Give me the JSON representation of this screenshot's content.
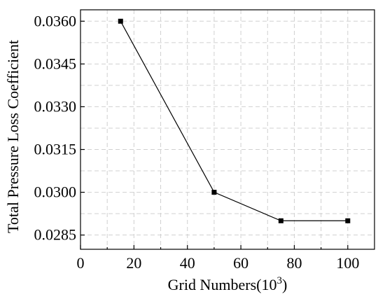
{
  "chart_data": {
    "type": "line",
    "xlabel": "Grid Numbers(10",
    "xlabel_superscript": "3",
    "xlabel_suffix": ")",
    "ylabel": "Total Pressure Loss Coefficient",
    "xlim": [
      0,
      110
    ],
    "ylim": [
      0.028,
      0.0364
    ],
    "xticks": [
      0,
      20,
      40,
      60,
      80,
      100
    ],
    "xtick_labels": [
      "0",
      "20",
      "40",
      "60",
      "80",
      "100"
    ],
    "yticks": [
      0.0285,
      0.03,
      0.0315,
      0.033,
      0.0345,
      0.036
    ],
    "ytick_labels": [
      "0.0285",
      "0.0300",
      "0.0315",
      "0.0330",
      "0.0345",
      "0.0360"
    ],
    "grid": true,
    "series": [
      {
        "x": [
          15,
          50,
          75,
          100
        ],
        "y": [
          0.036,
          0.03,
          0.029,
          0.029
        ],
        "marker": "square",
        "color": "#000000"
      }
    ]
  }
}
